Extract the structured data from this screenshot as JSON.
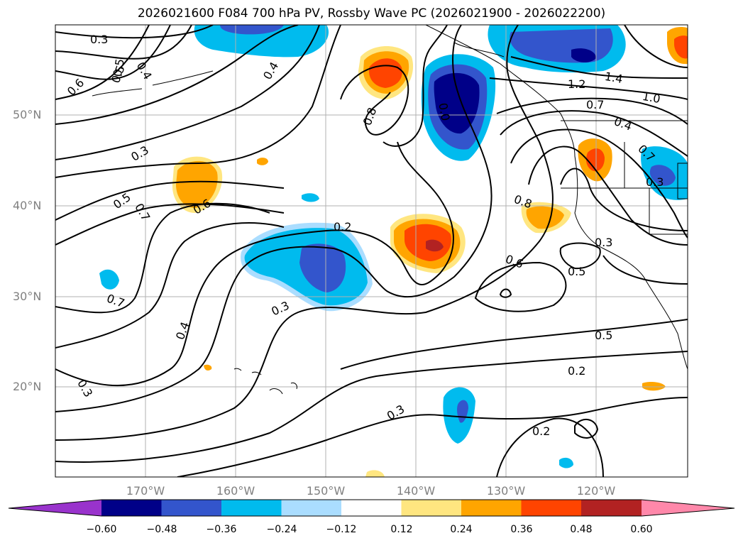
{
  "title": "2026021600 F084 700 hPa PV, Rossby Wave PC (2026021900 - 2026022200)",
  "latitude_labels": [
    "50°N",
    "40°N",
    "30°N",
    "20°N"
  ],
  "longitude_labels": [
    "170°W",
    "160°W",
    "150°W",
    "140°W",
    "130°W",
    "120°W"
  ],
  "contour_labels": [
    "0.3",
    "0.5",
    "0.4",
    "0.6",
    "0.4",
    "0.8",
    "0.3",
    "0.5",
    "0.7",
    "0.6",
    "0.2",
    "0.8",
    "0.6",
    "0.5",
    "0.7",
    "0.3",
    "0.4",
    "0.3",
    "0.5",
    "0.2",
    "0.3",
    "0.2",
    "0.3",
    "1.2",
    "1.4",
    "1.0",
    "0.7",
    "0.4",
    "0.3",
    "0.5",
    "0.0",
    "0.7"
  ],
  "colorbar": {
    "ticks": [
      "−0.60",
      "−0.48",
      "−0.36",
      "−0.24",
      "−0.12",
      "0.12",
      "0.24",
      "0.36",
      "0.48",
      "0.60"
    ],
    "colors": [
      "#9933cc",
      "#000088",
      "#3355cc",
      "#00bbee",
      "#aaddff",
      "#ffffff",
      "#ffe680",
      "#ffa500",
      "#ff4400",
      "#b22222",
      "#ff88aa"
    ]
  }
}
